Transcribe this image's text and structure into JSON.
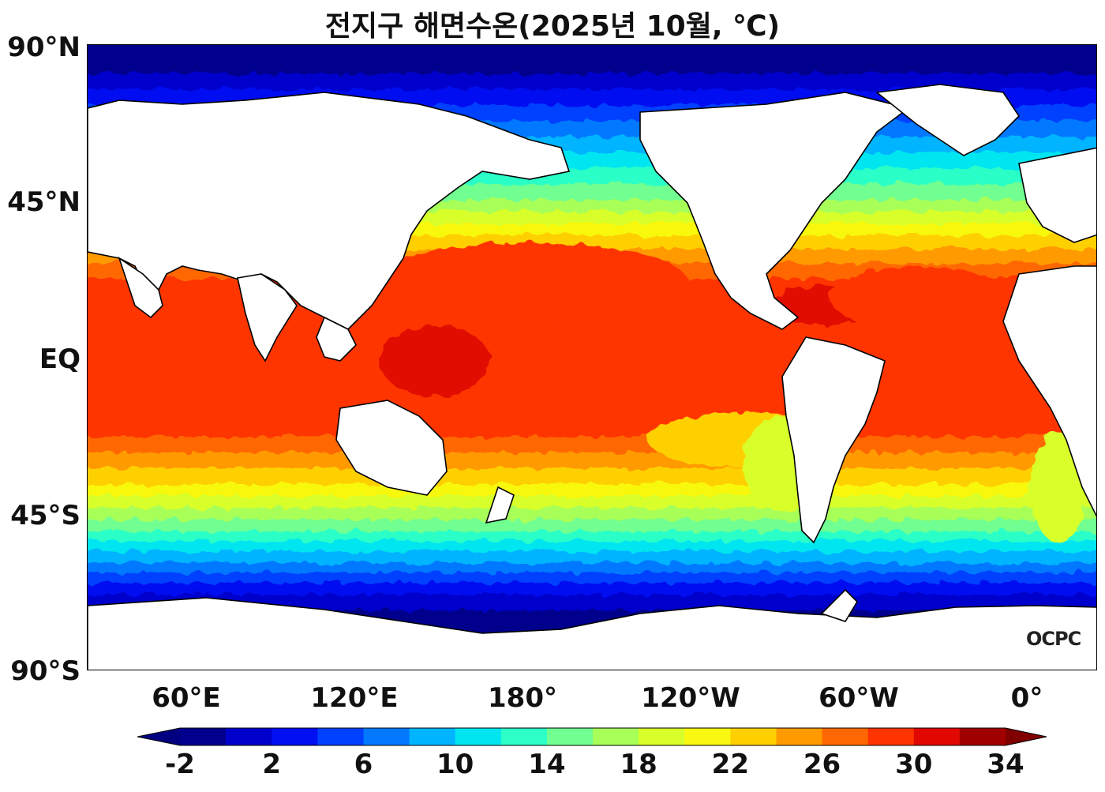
{
  "title": "전지구 해면수온(2025년 10월, ℃)",
  "lat_labels": [
    "90°N",
    "45°N",
    "EQ",
    "45°S",
    "90°S"
  ],
  "lon_labels": [
    "60°E",
    "120°E",
    "180°",
    "120°W",
    "60°W",
    "0°"
  ],
  "watermark": "OCPC",
  "colorbar": {
    "tick_labels": [
      "-2",
      "2",
      "6",
      "10",
      "14",
      "18",
      "22",
      "26",
      "30",
      "34"
    ],
    "levels": [
      -2,
      0,
      2,
      4,
      6,
      8,
      10,
      12,
      14,
      16,
      18,
      20,
      22,
      24,
      26,
      28,
      30,
      32,
      34
    ],
    "colors": [
      "#00008c",
      "#0000cc",
      "#0010f0",
      "#0040ff",
      "#0078ff",
      "#00b4ff",
      "#00e6f0",
      "#2cffc8",
      "#70ff90",
      "#a8ff58",
      "#d8ff2a",
      "#f8f810",
      "#ffd000",
      "#ff9a00",
      "#ff6800",
      "#ff3400",
      "#e00800",
      "#a00000"
    ],
    "under_color": "#000080",
    "over_color": "#800000",
    "extend": "both"
  },
  "map": {
    "projection": "equirectangular",
    "center_longitude": "Pacific-centered",
    "land_color": "#ffffff",
    "coastline_color": "#000000"
  }
}
